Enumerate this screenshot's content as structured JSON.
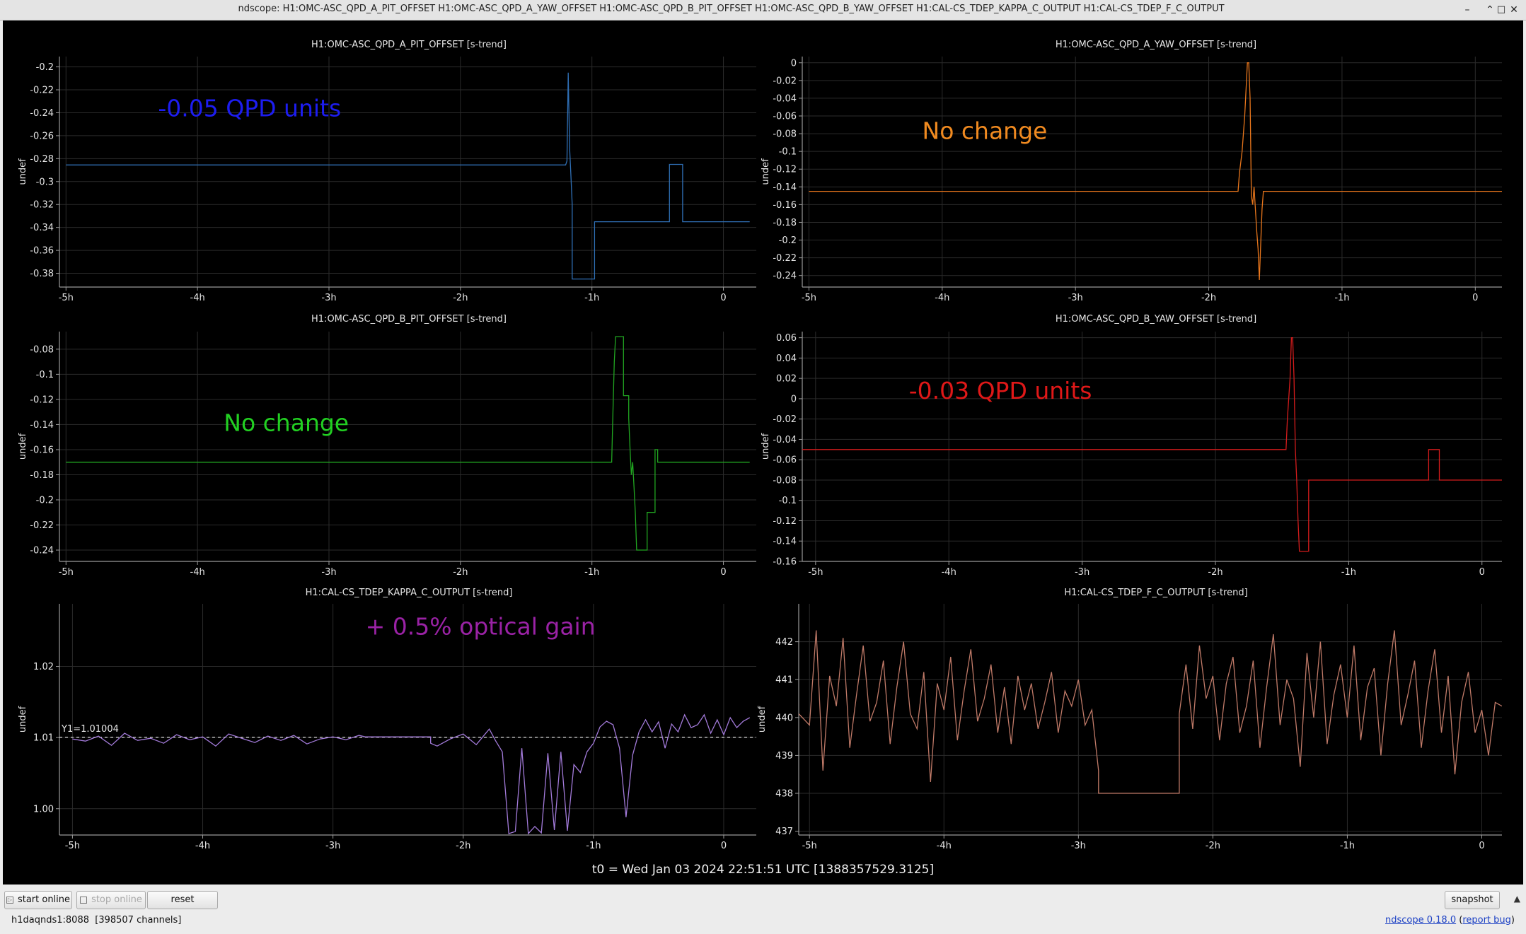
{
  "window": {
    "title": "ndscope: H1:OMC-ASC_QPD_A_PIT_OFFSET H1:OMC-ASC_QPD_A_YAW_OFFSET H1:OMC-ASC_QPD_B_PIT_OFFSET H1:OMC-ASC_QPD_B_YAW_OFFSET H1:CAL-CS_TDEP_KAPPA_C_OUTPUT H1:CAL-CS_TDEP_F_C_OUTPUT",
    "controls": {
      "minimize": "–",
      "restore": "⌃",
      "maximize": "□",
      "close": "✕"
    }
  },
  "colors": {
    "background": "#000000",
    "grid": "#2b2b2b",
    "axis": "#9a9a9a",
    "text": "#e6e6e6"
  },
  "chart_data": [
    {
      "type": "line",
      "title": "H1:OMC-ASC_QPD_A_PIT_OFFSET [s-trend]",
      "ylabel": "undef",
      "color": "#2f6fb5",
      "xlim": [
        -5.05,
        0.25
      ],
      "ylim": [
        -0.392,
        -0.191
      ],
      "xticks": [
        -5,
        -4,
        -3,
        -2,
        -1,
        0
      ],
      "xtick_labels": [
        "-5h",
        "-4h",
        "-3h",
        "-2h",
        "-1h",
        "0"
      ],
      "yticks": [
        -0.2,
        -0.22,
        -0.24,
        -0.26,
        -0.28,
        -0.3,
        -0.32,
        -0.34,
        -0.36,
        -0.38
      ],
      "ytick_labels": [
        "-0.2",
        "-0.22",
        "-0.24",
        "-0.26",
        "-0.28",
        "-0.3",
        "-0.32",
        "-0.34",
        "-0.36",
        "-0.38"
      ],
      "annotation": {
        "text": "-0.05 QPD units",
        "color": "#1d1df0",
        "x": -4.3,
        "y": -0.243
      },
      "x": [
        -5,
        -1.2,
        -1.19,
        -1.18,
        -1.17,
        -1.16,
        -1.15,
        -1.15,
        -0.98,
        -0.98,
        -0.41,
        -0.41,
        -0.31,
        -0.31,
        0.2
      ],
      "y": [
        -0.2855,
        -0.2855,
        -0.282,
        -0.205,
        -0.27,
        -0.295,
        -0.32,
        -0.385,
        -0.385,
        -0.335,
        -0.335,
        -0.285,
        -0.285,
        -0.335,
        -0.335
      ]
    },
    {
      "type": "line",
      "title": "H1:OMC-ASC_QPD_A_YAW_OFFSET [s-trend]",
      "ylabel": "undef",
      "color": "#e8761c",
      "xlim": [
        -5.05,
        0.2
      ],
      "ylim": [
        -0.253,
        0.007
      ],
      "xticks": [
        -5,
        -4,
        -3,
        -2,
        -1,
        0
      ],
      "xtick_labels": [
        "-5h",
        "-4h",
        "-3h",
        "-2h",
        "-1h",
        "0"
      ],
      "yticks": [
        0,
        -0.02,
        -0.04,
        -0.06,
        -0.08,
        -0.1,
        -0.12,
        -0.14,
        -0.16,
        -0.18,
        -0.2,
        -0.22,
        -0.24
      ],
      "ytick_labels": [
        "0",
        "-0.02",
        "-0.04",
        "-0.06",
        "-0.08",
        "-0.1",
        "-0.12",
        "-0.14",
        "-0.16",
        "-0.18",
        "-0.2",
        "-0.22",
        "-0.24"
      ],
      "annotation": {
        "text": "No change",
        "color": "#f08a20",
        "x": -4.15,
        "y": -0.086
      },
      "x": [
        -5,
        -1.78,
        -1.77,
        -1.75,
        -1.73,
        -1.72,
        -1.71,
        -1.7,
        -1.69,
        -1.68,
        -1.67,
        -1.66,
        -1.65,
        -1.64,
        -1.63,
        -1.62,
        -1.61,
        -1.6,
        -1.59,
        0.2
      ],
      "y": [
        -0.145,
        -0.145,
        -0.125,
        -0.1,
        -0.06,
        -0.03,
        0,
        0,
        -0.04,
        -0.15,
        -0.16,
        -0.14,
        -0.165,
        -0.19,
        -0.21,
        -0.245,
        -0.205,
        -0.165,
        -0.145,
        -0.145
      ]
    },
    {
      "type": "line",
      "title": "H1:OMC-ASC_QPD_B_PIT_OFFSET [s-trend]",
      "ylabel": "undef",
      "color": "#21a621",
      "xlim": [
        -5.05,
        0.25
      ],
      "ylim": [
        -0.249,
        -0.066
      ],
      "xticks": [
        -5,
        -4,
        -3,
        -2,
        -1,
        0
      ],
      "xtick_labels": [
        "-5h",
        "-4h",
        "-3h",
        "-2h",
        "-1h",
        "0"
      ],
      "yticks": [
        -0.08,
        -0.1,
        -0.12,
        -0.14,
        -0.16,
        -0.18,
        -0.2,
        -0.22,
        -0.24
      ],
      "ytick_labels": [
        "-0.08",
        "-0.1",
        "-0.12",
        "-0.14",
        "-0.16",
        "-0.18",
        "-0.2",
        "-0.22",
        "-0.24"
      ],
      "annotation": {
        "text": "No change",
        "color": "#22d022",
        "x": -3.8,
        "y": -0.145
      },
      "x": [
        -5,
        -0.85,
        -0.84,
        -0.83,
        -0.82,
        -0.82,
        -0.76,
        -0.76,
        -0.72,
        -0.72,
        -0.71,
        -0.7,
        -0.69,
        -0.68,
        -0.67,
        -0.66,
        -0.66,
        -0.58,
        -0.58,
        -0.52,
        -0.52,
        -0.5,
        -0.5,
        0.2
      ],
      "y": [
        -0.17,
        -0.17,
        -0.13,
        -0.09,
        -0.07,
        -0.07,
        -0.07,
        -0.117,
        -0.117,
        -0.135,
        -0.16,
        -0.18,
        -0.17,
        -0.19,
        -0.21,
        -0.24,
        -0.24,
        -0.24,
        -0.21,
        -0.21,
        -0.16,
        -0.16,
        -0.17,
        -0.17
      ]
    },
    {
      "type": "line",
      "title": "H1:OMC-ASC_QPD_B_YAW_OFFSET [s-trend]",
      "ylabel": "undef",
      "color": "#d41c1c",
      "xlim": [
        -5.1,
        0.15
      ],
      "ylim": [
        -0.16,
        0.066
      ],
      "xticks": [
        -5,
        -4,
        -3,
        -2,
        -1,
        0
      ],
      "xtick_labels": [
        "-5h",
        "-4h",
        "-3h",
        "-2h",
        "-1h",
        "0"
      ],
      "yticks": [
        0.06,
        0.04,
        0.02,
        0,
        -0.02,
        -0.04,
        -0.06,
        -0.08,
        -0.1,
        -0.12,
        -0.14,
        -0.16
      ],
      "ytick_labels": [
        "0.06",
        "0.04",
        "0.02",
        "0",
        "-0.02",
        "-0.04",
        "-0.06",
        "-0.08",
        "-0.1",
        "-0.12",
        "-0.14",
        "-0.16"
      ],
      "annotation": {
        "text": "-0.03 QPD units",
        "color": "#e01818",
        "x": -4.3,
        "y": 0.0
      },
      "x": [
        -5.1,
        -1.47,
        -1.46,
        -1.44,
        -1.43,
        -1.42,
        -1.41,
        -1.4,
        -1.39,
        -1.38,
        -1.37,
        -1.37,
        -1.3,
        -1.3,
        -0.4,
        -0.4,
        -0.32,
        -0.32,
        0.15
      ],
      "y": [
        -0.05,
        -0.05,
        -0.02,
        0.02,
        0.06,
        0.06,
        0.02,
        -0.05,
        -0.08,
        -0.12,
        -0.15,
        -0.15,
        -0.15,
        -0.08,
        -0.08,
        -0.05,
        -0.05,
        -0.08,
        -0.08
      ]
    },
    {
      "type": "line",
      "title": "H1:CAL-CS_TDEP_KAPPA_C_OUTPUT [s-trend]",
      "ylabel": "undef",
      "color": "#a27ad9",
      "xlim": [
        -5.1,
        0.25
      ],
      "ylim": [
        0.9963,
        1.0288
      ],
      "xticks": [
        -5,
        -4,
        -3,
        -2,
        -1,
        0
      ],
      "xtick_labels": [
        "-5h",
        "-4h",
        "-3h",
        "-2h",
        "-1h",
        "0"
      ],
      "yticks": [
        1.02,
        1.01,
        1.0
      ],
      "ytick_labels": [
        "1.02",
        "1.01",
        "1.00"
      ],
      "reference_line": {
        "label": "Y1=1.01004",
        "value": 1.01004
      },
      "annotation": {
        "text": "+ 0.5% optical gain",
        "color": "#9a22a5",
        "x": -2.75,
        "y": 1.0245
      },
      "x": [
        -5,
        -4.9,
        -4.8,
        -4.7,
        -4.6,
        -4.5,
        -4.4,
        -4.3,
        -4.2,
        -4.1,
        -4,
        -3.9,
        -3.8,
        -3.7,
        -3.6,
        -3.5,
        -3.4,
        -3.3,
        -3.2,
        -3.1,
        -3,
        -2.9,
        -2.8,
        -2.75,
        -2.5,
        -2.25,
        -2.25,
        -2.2,
        -2.1,
        -2,
        -1.9,
        -1.8,
        -1.75,
        -1.7,
        -1.65,
        -1.6,
        -1.55,
        -1.5,
        -1.45,
        -1.4,
        -1.35,
        -1.3,
        -1.25,
        -1.2,
        -1.15,
        -1.1,
        -1.05,
        -1,
        -0.95,
        -0.9,
        -0.85,
        -0.8,
        -0.75,
        -0.7,
        -0.65,
        -0.6,
        -0.55,
        -0.5,
        -0.45,
        -0.4,
        -0.35,
        -0.3,
        -0.25,
        -0.2,
        -0.15,
        -0.1,
        -0.05,
        0,
        0.05,
        0.1,
        0.15,
        0.2
      ],
      "y": [
        1.0098,
        1.0095,
        1.0102,
        1.0089,
        1.0106,
        1.0096,
        1.0099,
        1.0092,
        1.0104,
        1.0097,
        1.0101,
        1.0088,
        1.0105,
        1.0099,
        1.0093,
        1.0102,
        1.0096,
        1.0103,
        1.0091,
        1.0098,
        1.0101,
        1.0097,
        1.0103,
        1.0101,
        1.0101,
        1.0101,
        1.0092,
        1.0088,
        1.0098,
        1.0105,
        1.009,
        1.0112,
        1.0095,
        1.008,
        0.9965,
        0.9968,
        1.0085,
        0.9965,
        0.9975,
        0.9966,
        1.0078,
        0.997,
        1.008,
        0.9969,
        1.0062,
        1.0051,
        1.008,
        1.0092,
        1.0115,
        1.0123,
        1.0118,
        1.0085,
        0.9988,
        1.0075,
        1.0108,
        1.0125,
        1.0108,
        1.0122,
        1.0085,
        1.0119,
        1.0108,
        1.0132,
        1.0114,
        1.0118,
        1.0132,
        1.0106,
        1.0125,
        1.0104,
        1.0128,
        1.0114,
        1.0123,
        1.0128
      ]
    },
    {
      "type": "line",
      "title": "H1:CAL-CS_TDEP_F_C_OUTPUT [s-trend]",
      "ylabel": "undef",
      "color": "#c07a68",
      "xlim": [
        -5.08,
        0.15
      ],
      "ylim": [
        436.9,
        443.0
      ],
      "xticks": [
        -5,
        -4,
        -3,
        -2,
        -1,
        0
      ],
      "xtick_labels": [
        "-5h",
        "-4h",
        "-3h",
        "-2h",
        "-1h",
        "0"
      ],
      "yticks": [
        442,
        441,
        440,
        439,
        438,
        437
      ],
      "ytick_labels": [
        "442",
        "441",
        "440",
        "439",
        "438",
        "437"
      ],
      "x": [
        -5.08,
        -5,
        -4.95,
        -4.9,
        -4.85,
        -4.8,
        -4.75,
        -4.7,
        -4.65,
        -4.6,
        -4.55,
        -4.5,
        -4.45,
        -4.4,
        -4.35,
        -4.3,
        -4.25,
        -4.2,
        -4.15,
        -4.1,
        -4.05,
        -4,
        -3.95,
        -3.9,
        -3.85,
        -3.8,
        -3.75,
        -3.7,
        -3.65,
        -3.6,
        -3.55,
        -3.5,
        -3.45,
        -3.4,
        -3.35,
        -3.3,
        -3.25,
        -3.2,
        -3.15,
        -3.1,
        -3.05,
        -3,
        -2.95,
        -2.9,
        -2.85,
        -2.85,
        -2.25,
        -2.25,
        -2.2,
        -2.15,
        -2.1,
        -2.05,
        -2,
        -1.95,
        -1.9,
        -1.85,
        -1.8,
        -1.75,
        -1.7,
        -1.65,
        -1.6,
        -1.55,
        -1.5,
        -1.45,
        -1.4,
        -1.35,
        -1.3,
        -1.25,
        -1.2,
        -1.15,
        -1.1,
        -1.05,
        -1,
        -0.95,
        -0.9,
        -0.85,
        -0.8,
        -0.75,
        -0.7,
        -0.65,
        -0.6,
        -0.55,
        -0.5,
        -0.45,
        -0.4,
        -0.35,
        -0.3,
        -0.25,
        -0.2,
        -0.15,
        -0.1,
        -0.05,
        0,
        0.05,
        0.1,
        0.15
      ],
      "y": [
        440.1,
        439.8,
        442.3,
        438.6,
        441.1,
        440.3,
        442.1,
        439.2,
        440.6,
        441.9,
        439.9,
        440.4,
        441.5,
        439.3,
        440.8,
        442.0,
        440.1,
        439.7,
        441.2,
        438.3,
        440.9,
        440.2,
        441.6,
        439.4,
        440.7,
        441.8,
        439.9,
        440.5,
        441.4,
        439.6,
        440.8,
        439.3,
        441.1,
        440.2,
        440.9,
        439.7,
        440.4,
        441.2,
        439.6,
        440.7,
        440.3,
        441.0,
        439.8,
        440.2,
        438.6,
        438.0,
        438.0,
        440.1,
        441.4,
        439.7,
        441.9,
        440.5,
        441.1,
        439.4,
        440.9,
        441.6,
        439.6,
        440.3,
        441.5,
        439.2,
        440.8,
        442.2,
        439.8,
        441.0,
        440.5,
        438.7,
        441.7,
        440.0,
        442.0,
        439.3,
        440.6,
        441.4,
        440.0,
        441.9,
        439.4,
        440.8,
        441.3,
        439.0,
        440.9,
        442.3,
        439.8,
        440.6,
        441.5,
        439.2,
        440.7,
        441.8,
        439.6,
        441.1,
        438.5,
        440.4,
        441.2,
        439.6,
        440.2,
        439.0,
        440.4,
        440.3
      ]
    }
  ],
  "t0_label": "t0 = Wed Jan 03 2024 22:51:51 UTC [1388357529.3125]",
  "toolbar": {
    "start_online": "start online",
    "stop_online": "stop online",
    "reset": "reset",
    "snapshot": "snapshot"
  },
  "status": {
    "server": "h1daqnds1:8088",
    "channels": "[398507 channels]",
    "version": "ndscope 0.18.0",
    "report_bug": "report bug"
  }
}
